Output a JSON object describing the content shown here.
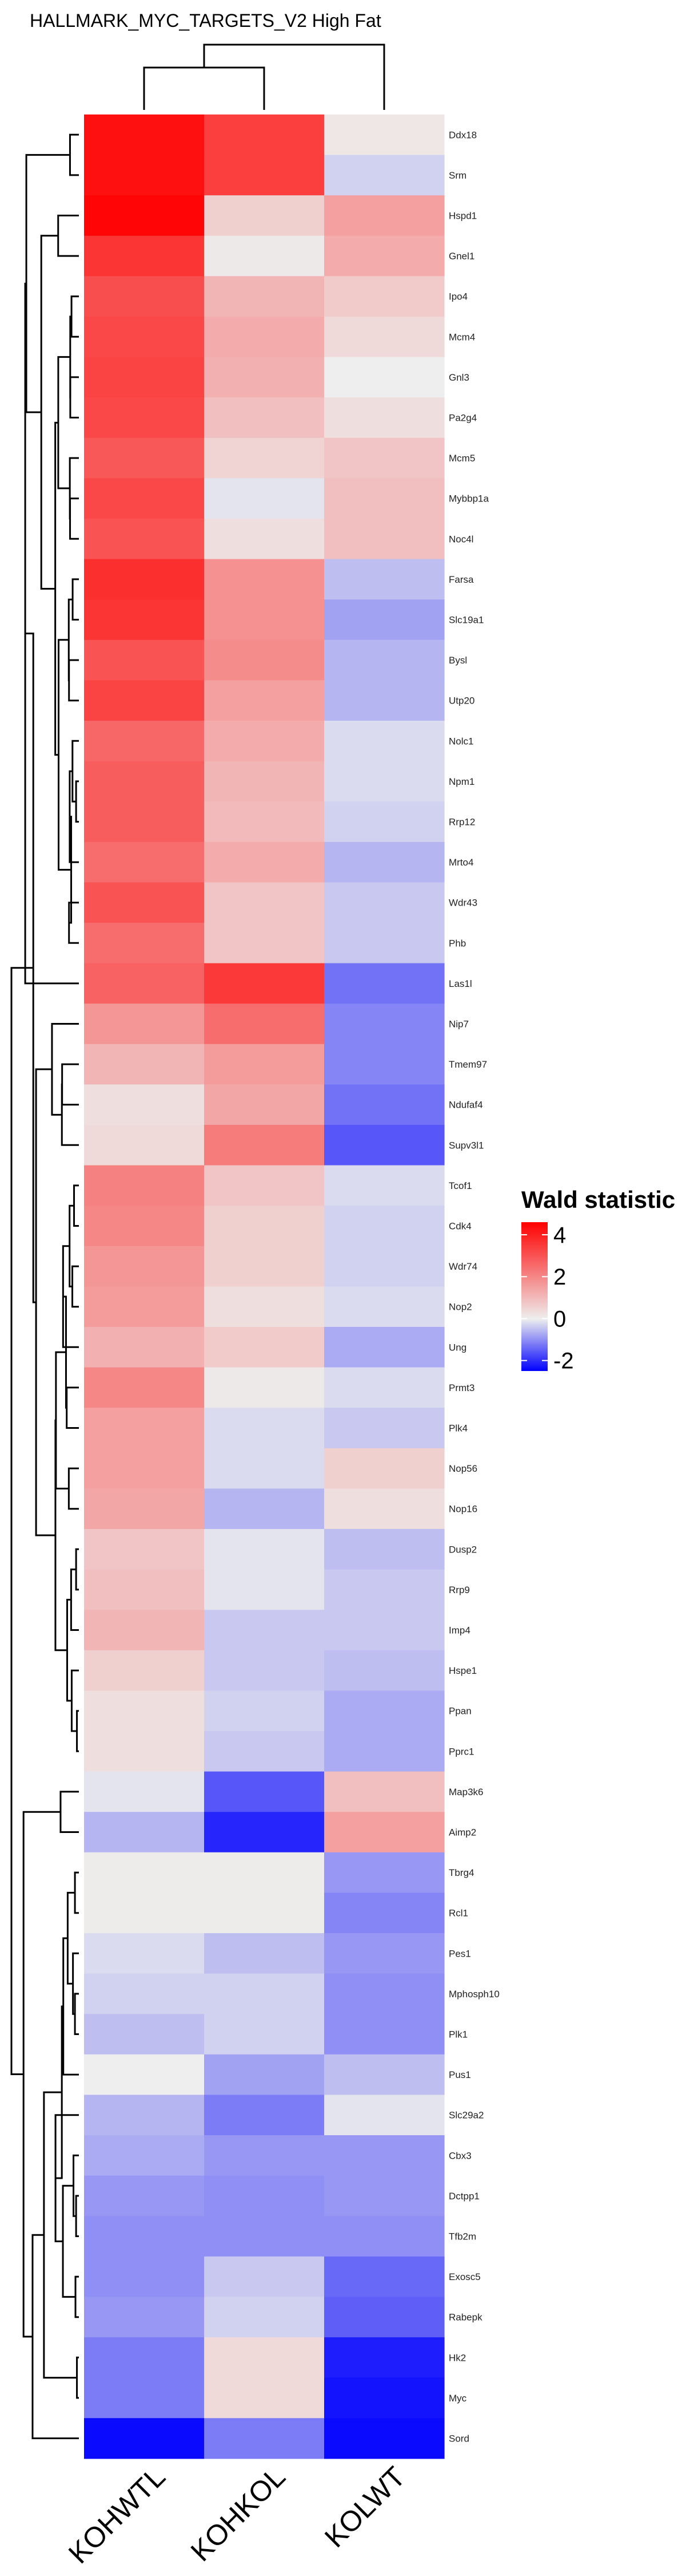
{
  "chart_data": {
    "type": "heatmap",
    "title": "HALLMARK_MYC_TARGETS_V2 High Fat",
    "columns": [
      "KOHWTL",
      "KOHKOL",
      "KOLWT"
    ],
    "rows": [
      "Ddx18",
      "Srm",
      "Hspd1",
      "Gnel1",
      "Ipo4",
      "Mcm4",
      "Gnl3",
      "Pa2g4",
      "Mcm5",
      "Mybbp1a",
      "Noc4l",
      "Farsa",
      "Slc19a1",
      "Bysl",
      "Utp20",
      "Nolc1",
      "Npm1",
      "Rrp12",
      "Mrto4",
      "Wdr43",
      "Phb",
      "Las1l",
      "Nip7",
      "Tmem97",
      "Ndufaf4",
      "Supv3l1",
      "Tcof1",
      "Cdk4",
      "Wdr74",
      "Nop2",
      "Ung",
      "Prmt3",
      "Plk4",
      "Nop56",
      "Nop16",
      "Dusp2",
      "Rrp9",
      "Imp4",
      "Hspe1",
      "Ppan",
      "Pprc1",
      "Map3k6",
      "Aimp2",
      "Tbrg4",
      "Rcl1",
      "Pes1",
      "Mphosph10",
      "Plk1",
      "Pus1",
      "Slc29a2",
      "Cbx3",
      "Dctpp1",
      "Tfb2m",
      "Exosc5",
      "Rabepk",
      "Hk2",
      "Myc",
      "Sord"
    ],
    "values": [
      [
        4.3,
        3.4,
        0.15
      ],
      [
        4.3,
        3.4,
        -0.3
      ],
      [
        4.5,
        0.6,
        1.5
      ],
      [
        3.6,
        0.1,
        1.3
      ],
      [
        3.1,
        1.1,
        0.7
      ],
      [
        3.2,
        1.3,
        0.4
      ],
      [
        3.3,
        1.2,
        0.0
      ],
      [
        3.2,
        0.9,
        0.3
      ],
      [
        2.9,
        0.5,
        0.8
      ],
      [
        3.2,
        -0.1,
        0.9
      ],
      [
        3.0,
        0.3,
        0.9
      ],
      [
        3.7,
        1.8,
        -0.5
      ],
      [
        3.6,
        1.8,
        -0.8
      ],
      [
        3.0,
        1.9,
        -0.6
      ],
      [
        3.3,
        1.5,
        -0.6
      ],
      [
        2.6,
        1.3,
        -0.2
      ],
      [
        2.8,
        1.1,
        -0.2
      ],
      [
        2.8,
        1.0,
        -0.3
      ],
      [
        2.5,
        1.3,
        -0.6
      ],
      [
        3.0,
        0.8,
        -0.4
      ],
      [
        2.5,
        0.8,
        -0.4
      ],
      [
        2.7,
        3.5,
        -1.3
      ],
      [
        1.7,
        2.5,
        -1.1
      ],
      [
        1.1,
        1.6,
        -1.1
      ],
      [
        0.3,
        1.4,
        -1.3
      ],
      [
        0.4,
        2.2,
        -1.6
      ],
      [
        2.1,
        0.8,
        -0.2
      ],
      [
        2.0,
        0.6,
        -0.3
      ],
      [
        1.7,
        0.6,
        -0.3
      ],
      [
        1.6,
        0.3,
        -0.2
      ],
      [
        1.2,
        0.7,
        -0.7
      ],
      [
        2.0,
        0.1,
        -0.2
      ],
      [
        1.5,
        -0.2,
        -0.4
      ],
      [
        1.5,
        -0.2,
        0.6
      ],
      [
        1.4,
        -0.6,
        0.3
      ],
      [
        0.8,
        -0.1,
        -0.5
      ],
      [
        0.9,
        -0.1,
        -0.4
      ],
      [
        1.1,
        -0.4,
        -0.4
      ],
      [
        0.6,
        -0.4,
        -0.5
      ],
      [
        0.3,
        -0.3,
        -0.7
      ],
      [
        0.3,
        -0.4,
        -0.7
      ],
      [
        -0.1,
        -1.6,
        0.9
      ],
      [
        -0.6,
        -2.1,
        1.5
      ],
      [
        0.05,
        0.05,
        -0.9
      ],
      [
        0.05,
        0.05,
        -1.1
      ],
      [
        -0.2,
        -0.5,
        -0.9
      ],
      [
        -0.3,
        -0.3,
        -1.0
      ],
      [
        -0.5,
        -0.3,
        -1.0
      ],
      [
        0.0,
        -0.8,
        -0.5
      ],
      [
        -0.6,
        -1.2,
        -0.1
      ],
      [
        -0.7,
        -0.9,
        -0.9
      ],
      [
        -0.9,
        -1.0,
        -0.9
      ],
      [
        -1.0,
        -1.0,
        -1.0
      ],
      [
        -1.0,
        -0.4,
        -1.4
      ],
      [
        -0.9,
        -0.3,
        -1.5
      ],
      [
        -1.2,
        0.4,
        -2.2
      ],
      [
        -1.2,
        0.4,
        -2.3
      ],
      [
        -2.4,
        -1.2,
        -2.4
      ]
    ],
    "legend": {
      "title": "Wald statistic",
      "ticks": [
        4,
        2,
        0,
        -2
      ],
      "range": [
        -2.5,
        4.6
      ]
    },
    "colors": {
      "low": "#0000ff",
      "mid": "#eeeeee",
      "high": "#ff0000"
    },
    "legend_placement": "right"
  }
}
